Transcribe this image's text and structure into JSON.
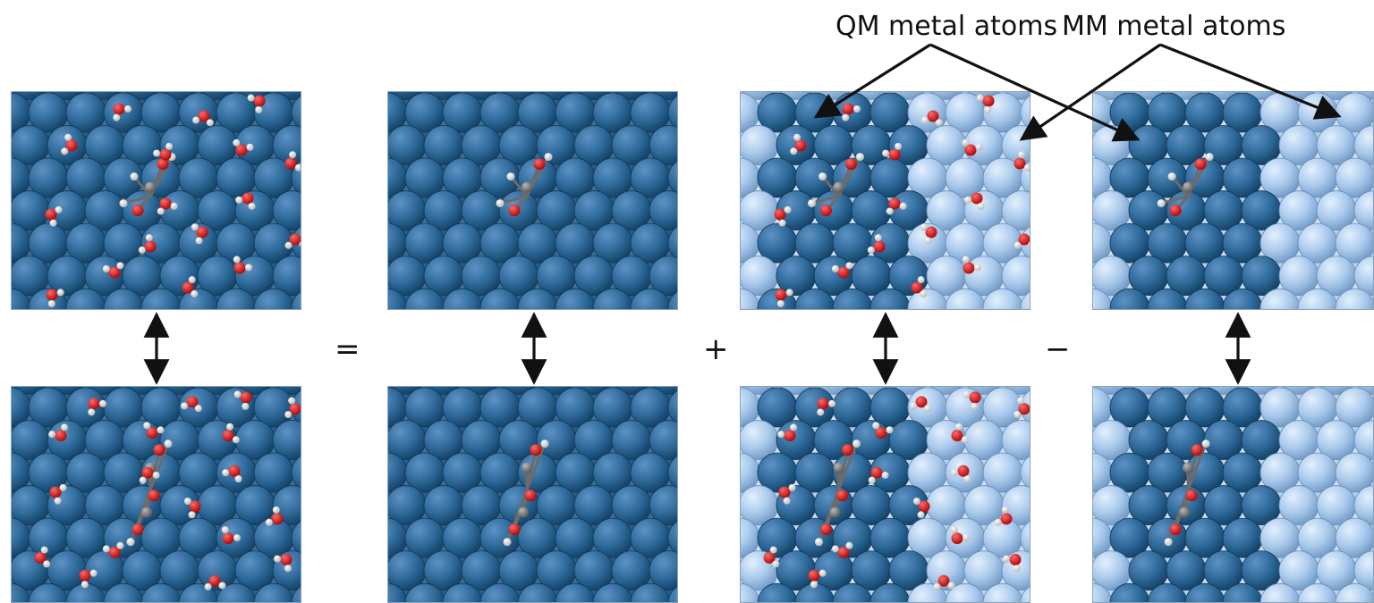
{
  "annotations": {
    "qm_label": "QM metal atoms",
    "mm_label": "MM metal atoms"
  },
  "operators": {
    "equals": "=",
    "plus": "+",
    "minus": "−"
  },
  "colors": {
    "qm_metal": "#2e6a9a",
    "mm_metal": "#a9c9ec",
    "oxygen": "#d41616",
    "hydrogen": "#f4f4f4",
    "carbon": "#8a8a8a",
    "arrow": "#111111"
  },
  "panels": [
    {
      "id": "full-system",
      "top": "full-system-with-water",
      "bottom": "full-system-with-water"
    },
    {
      "id": "qm-only",
      "top": "all-qm-slab-no-water",
      "bottom": "all-qm-slab-no-water"
    },
    {
      "id": "qm-mm-with-water",
      "top": "qm-mm-slab-with-water",
      "bottom": "qm-mm-slab-with-water"
    },
    {
      "id": "qm-mm-no-water",
      "top": "qm-mm-slab-no-water",
      "bottom": "qm-mm-slab-no-water"
    }
  ]
}
